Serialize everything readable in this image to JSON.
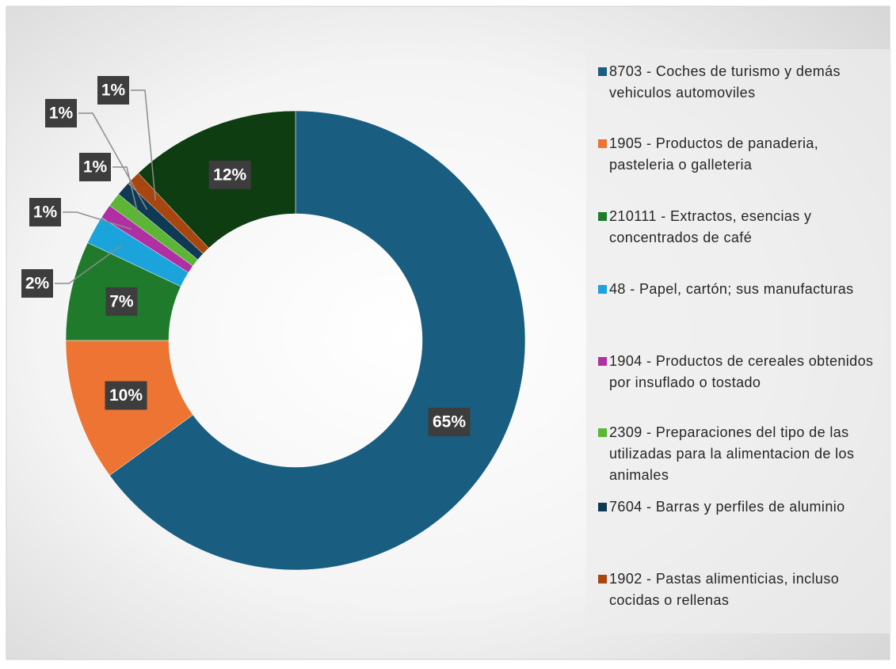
{
  "chart_data": {
    "type": "donut",
    "categories": [
      "8703 - Coches de turismo y demás vehiculos automoviles",
      "1905 - Productos de panaderia, pasteleria o galleteria",
      "210111 - Extractos, esencias y concentrados de café",
      "48 - Papel, cartón; sus manufacturas",
      "1904 - Productos de cereales obtenidos por insuflado o tostado",
      "2309 - Preparaciones del tipo de las utilizadas para la alimentacion de los animales",
      "7604 - Barras y perfiles de aluminio",
      "1902 - Pastas alimenticias, incluso cocidas o rellenas",
      null
    ],
    "values": [
      65,
      10,
      7,
      2,
      1,
      1,
      1,
      1,
      12
    ],
    "value_labels": [
      "65%",
      "10%",
      "7%",
      "2%",
      "1%",
      "1%",
      "1%",
      "1%",
      "12%"
    ],
    "colors": [
      "#195e80",
      "#ed7432",
      "#1f7a2c",
      "#1ba3dc",
      "#b02fa3",
      "#5cb535",
      "#0f3a55",
      "#a8460f",
      "#0f3d12"
    ],
    "legend": "right"
  }
}
